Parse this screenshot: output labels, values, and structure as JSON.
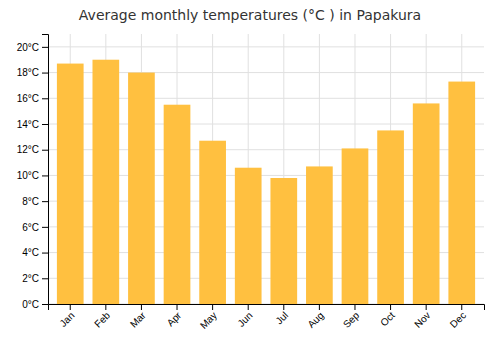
{
  "chart_data": {
    "type": "bar",
    "title": "Average monthly temperatures (°C ) in Papakura",
    "categories": [
      "Jan",
      "Feb",
      "Mar",
      "Apr",
      "May",
      "Jun",
      "Jul",
      "Aug",
      "Sep",
      "Oct",
      "Nov",
      "Dec"
    ],
    "values": [
      18.7,
      19.0,
      18.0,
      15.5,
      12.7,
      10.6,
      9.8,
      10.7,
      12.1,
      13.5,
      15.6,
      17.3
    ],
    "color": "#FFC040",
    "ylim": [
      0,
      21
    ],
    "yticks": [
      {
        "value": 0,
        "label": "0°C"
      },
      {
        "value": 2,
        "label": "2°C"
      },
      {
        "value": 4,
        "label": "4°C"
      },
      {
        "value": 6,
        "label": "6°C"
      },
      {
        "value": 8,
        "label": "8°C"
      },
      {
        "value": 10,
        "label": "10°C"
      },
      {
        "value": 12,
        "label": "12°C"
      },
      {
        "value": 14,
        "label": "14°C"
      },
      {
        "value": 16,
        "label": "16°C"
      },
      {
        "value": 18,
        "label": "18°C"
      },
      {
        "value": 20,
        "label": "20°C"
      }
    ],
    "grid": true
  }
}
